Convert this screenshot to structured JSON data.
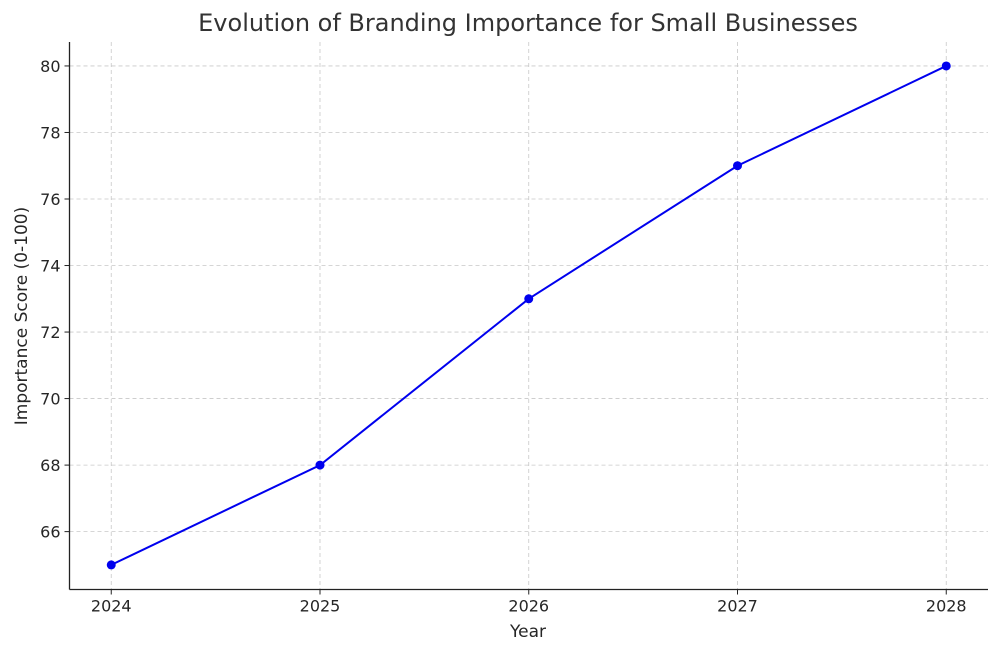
{
  "chart_data": {
    "type": "line",
    "title": "Evolution of Branding Importance for Small Businesses",
    "xlabel": "Year",
    "ylabel": "Importance Score (0-100)",
    "x": [
      2024,
      2025,
      2026,
      2027,
      2028
    ],
    "series": [
      {
        "values": [
          65,
          68,
          73,
          77,
          80
        ],
        "color": "#0000ee",
        "marker": "circle"
      }
    ],
    "xticks": [
      "2024",
      "2025",
      "2026",
      "2027",
      "2028"
    ],
    "yticks": [
      "66",
      "68",
      "70",
      "72",
      "74",
      "76",
      "78",
      "80"
    ],
    "xlim": [
      2023.8,
      2028.2
    ],
    "ylim": [
      64.26,
      80.72
    ],
    "grid": true,
    "grid_style": "dashed"
  }
}
